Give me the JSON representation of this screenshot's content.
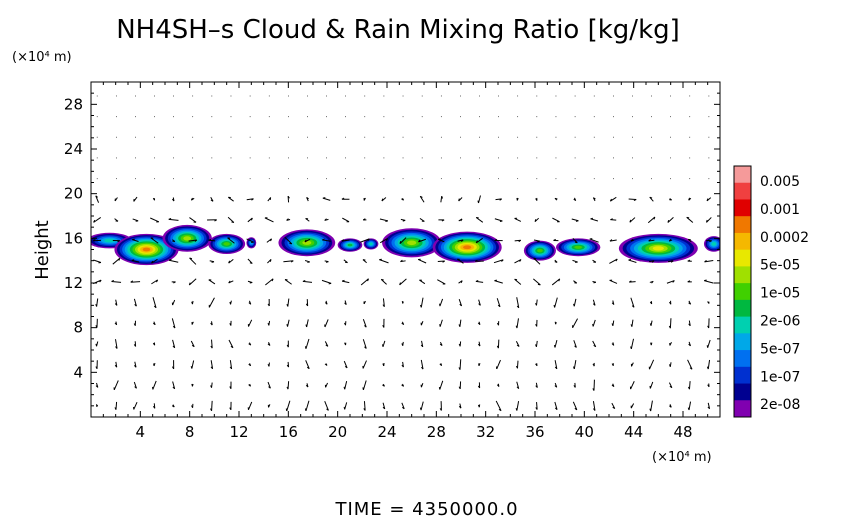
{
  "chart_data": {
    "type": "heatmap",
    "title": "NH4SH–s Cloud & Rain Mixing Ratio [kg/kg]",
    "xlabel": "",
    "ylabel": "Height",
    "x_unit_label": "(×10⁴ m)",
    "y_unit_label": "(×10⁴ m)",
    "xlim": [
      0,
      51
    ],
    "ylim": [
      0,
      30
    ],
    "x_ticks": [
      "4",
      "8",
      "12",
      "16",
      "20",
      "24",
      "28",
      "32",
      "36",
      "40",
      "44",
      "48"
    ],
    "y_ticks": [
      "4",
      "8",
      "12",
      "16",
      "20",
      "24",
      "28"
    ],
    "x_tick_values": [
      4,
      8,
      12,
      16,
      20,
      24,
      28,
      32,
      36,
      40,
      44,
      48
    ],
    "y_tick_values": [
      4,
      8,
      12,
      16,
      20,
      24,
      28
    ],
    "colorbar": {
      "labels": [
        "0.005",
        "0.001",
        "0.0002",
        "5e-05",
        "1e-05",
        "2e-06",
        "5e-07",
        "1e-07",
        "2e-08"
      ],
      "colors": [
        "#f59a9a",
        "#f04040",
        "#e00000",
        "#f07800",
        "#f5b800",
        "#e8e800",
        "#a0e000",
        "#40d000",
        "#00b840",
        "#00d0b0",
        "#00a8e8",
        "#0070f0",
        "#0030d0",
        "#000090",
        "#8000b0"
      ]
    },
    "cloud_cells": [
      {
        "x": 1.5,
        "y": 15.8,
        "rx": 1.8,
        "ry": 0.7,
        "level": 3
      },
      {
        "x": 4.5,
        "y": 15.0,
        "rx": 2.6,
        "ry": 1.4,
        "level": 9
      },
      {
        "x": 7.8,
        "y": 16.0,
        "rx": 2.0,
        "ry": 1.2,
        "level": 6
      },
      {
        "x": 11.0,
        "y": 15.5,
        "rx": 1.5,
        "ry": 0.9,
        "level": 5
      },
      {
        "x": 13.0,
        "y": 15.6,
        "rx": 0.4,
        "ry": 0.5,
        "level": 2
      },
      {
        "x": 17.5,
        "y": 15.6,
        "rx": 2.3,
        "ry": 1.2,
        "level": 6
      },
      {
        "x": 21.0,
        "y": 15.4,
        "rx": 1.0,
        "ry": 0.6,
        "level": 4
      },
      {
        "x": 22.7,
        "y": 15.5,
        "rx": 0.6,
        "ry": 0.5,
        "level": 3
      },
      {
        "x": 26.0,
        "y": 15.6,
        "rx": 2.4,
        "ry": 1.3,
        "level": 6
      },
      {
        "x": 30.5,
        "y": 15.2,
        "rx": 2.8,
        "ry": 1.4,
        "level": 9
      },
      {
        "x": 36.4,
        "y": 14.9,
        "rx": 1.3,
        "ry": 0.9,
        "level": 5
      },
      {
        "x": 39.5,
        "y": 15.2,
        "rx": 1.8,
        "ry": 0.8,
        "level": 5
      },
      {
        "x": 46.0,
        "y": 15.1,
        "rx": 3.2,
        "ry": 1.3,
        "level": 7
      },
      {
        "x": 50.5,
        "y": 15.5,
        "rx": 0.8,
        "ry": 0.7,
        "level": 3
      }
    ],
    "wind_vectors": "velocity field shown as arrows on a regular grid",
    "grid": false,
    "legend": "right"
  },
  "footer": {
    "time_label": "TIME = 4350000.0"
  }
}
